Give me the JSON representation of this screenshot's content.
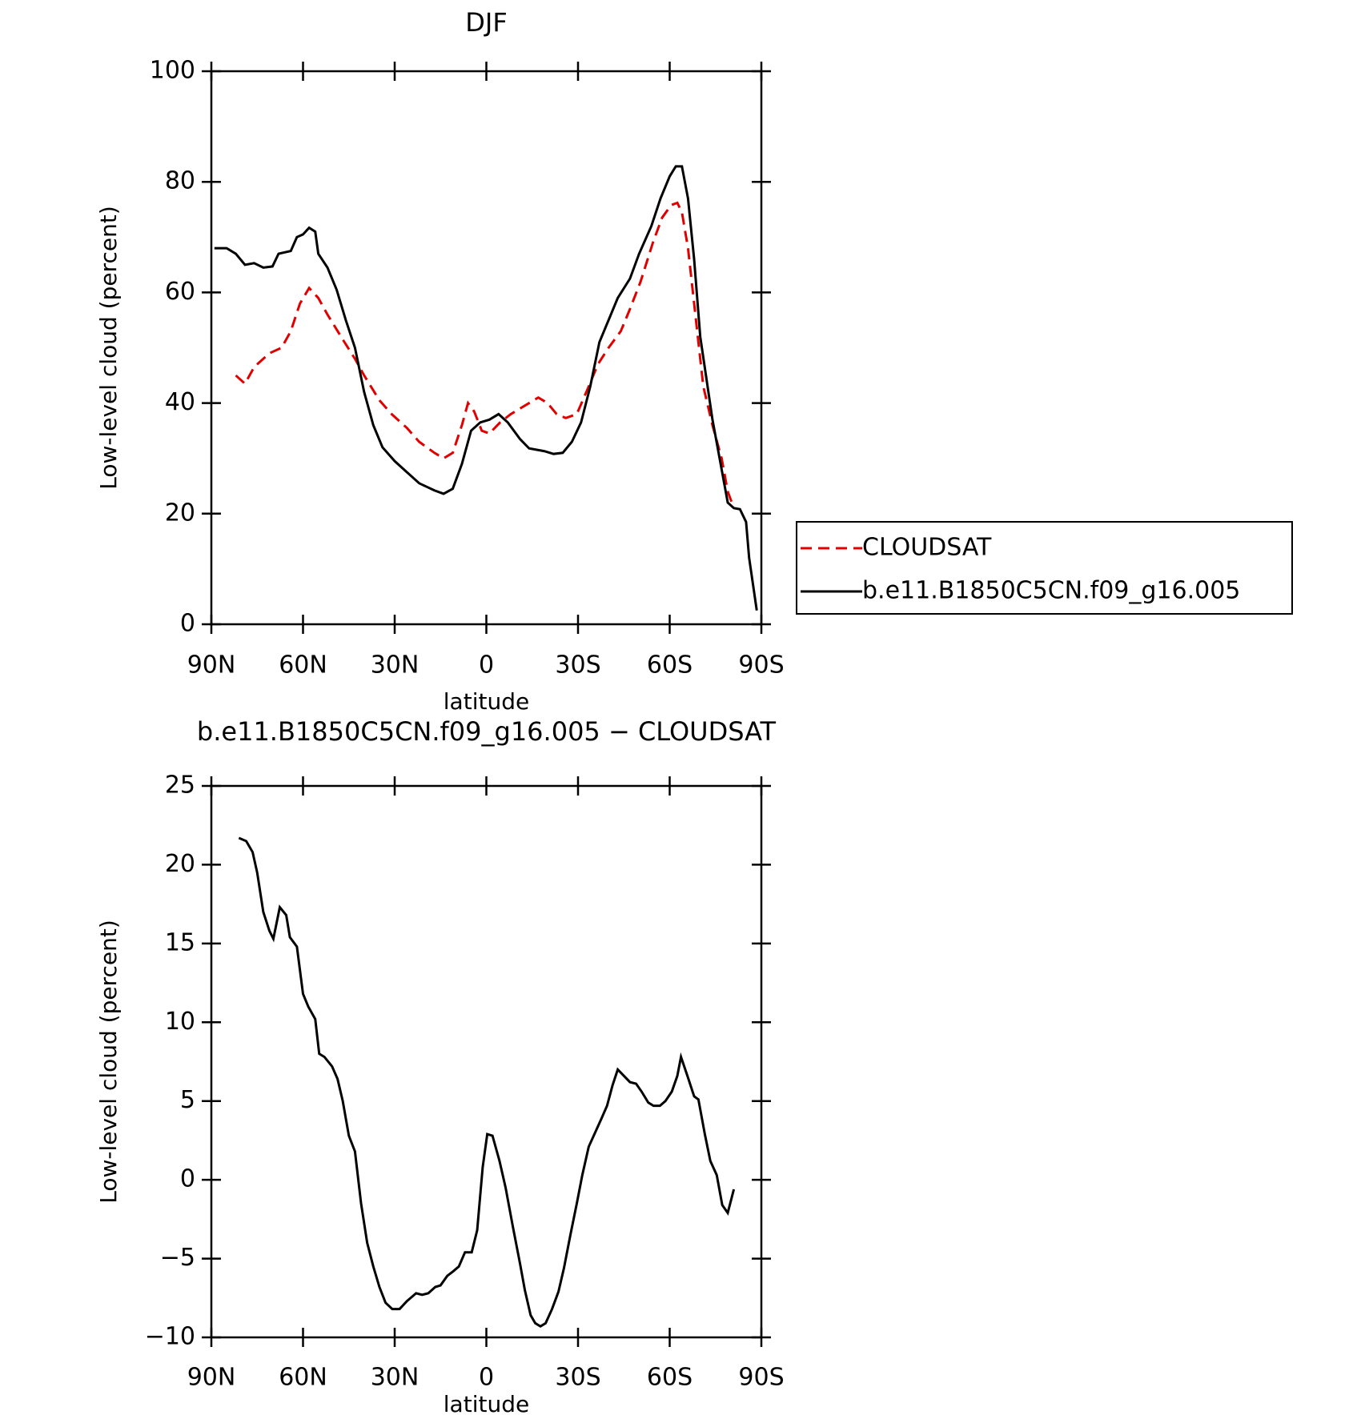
{
  "chart_data": [
    {
      "type": "line",
      "title": "DJF",
      "xlabel": "latitude",
      "ylabel": "Low-level cloud (percent)",
      "xlim": [
        90,
        -90
      ],
      "ylim": [
        0,
        100
      ],
      "xticks": [
        {
          "value": 90,
          "label": "90N"
        },
        {
          "value": 60,
          "label": "60N"
        },
        {
          "value": 30,
          "label": "30N"
        },
        0,
        {
          "value": -30,
          "label": "30S"
        },
        {
          "value": -60,
          "label": "60S"
        },
        {
          "value": -90,
          "label": "90S"
        }
      ],
      "yticks": [
        0,
        20,
        40,
        60,
        80,
        100
      ],
      "legend": "right",
      "series": [
        {
          "name": "CLOUDSAT",
          "color": "#e00000",
          "style": "dashed",
          "x": [
            82,
            79,
            76,
            71,
            67,
            64,
            61,
            58,
            55,
            52,
            47,
            43,
            40,
            35,
            31,
            26,
            22,
            17,
            14,
            11,
            8,
            6,
            4,
            1.5,
            -1,
            -4.5,
            -8,
            -12.5,
            -17,
            -20,
            -23,
            -26,
            -29.6,
            -33.5,
            -36.5,
            -40,
            -44,
            -47,
            -50.5,
            -54.5,
            -57.5,
            -60.5,
            -62.5,
            -64,
            -66,
            -68,
            -71,
            -74,
            -77,
            -79,
            -81
          ],
          "values": [
            45,
            43.5,
            46.5,
            49,
            50,
            53,
            58,
            60.8,
            59,
            56,
            51.5,
            48,
            45,
            40.5,
            38,
            35.5,
            33,
            31,
            30,
            31,
            36,
            40,
            38.5,
            35,
            34.5,
            36.5,
            38,
            39.5,
            41,
            40,
            38,
            37.3,
            38,
            43,
            47,
            50,
            53,
            57,
            62,
            69,
            73.5,
            75.8,
            76.2,
            74.5,
            68,
            58,
            43,
            36,
            30,
            24,
            21
          ]
        },
        {
          "name": "b.e11.B1850C5CN.f09_g16.005",
          "color": "#000000",
          "style": "solid",
          "x": [
            89,
            85,
            82,
            79,
            76,
            73,
            70,
            68,
            64,
            62,
            60,
            58,
            56,
            55,
            52,
            49,
            46,
            43,
            40,
            37,
            34,
            30,
            26,
            22,
            17,
            14,
            11,
            8,
            5,
            2,
            -1,
            -4,
            -7,
            -11,
            -14,
            -19,
            -22,
            -25,
            -28,
            -31,
            -34,
            -37,
            -40,
            -43,
            -47,
            -50,
            -54,
            -57,
            -60,
            -62,
            -64,
            -66,
            -68,
            -70,
            -74,
            -77,
            -79,
            -81,
            -83,
            -85,
            -86,
            -88.5
          ],
          "values": [
            68,
            68,
            67,
            65,
            65.3,
            64.5,
            64.7,
            67,
            67.5,
            70,
            70.5,
            71.7,
            71,
            67,
            64.5,
            60.5,
            55,
            50,
            42,
            36,
            32,
            29.5,
            27.5,
            25.5,
            24.2,
            23.6,
            24.5,
            29,
            35,
            36.5,
            37,
            38,
            36.5,
            33.5,
            31.8,
            31.3,
            30.8,
            31,
            33,
            36.5,
            43,
            51,
            55,
            59,
            62.5,
            67,
            72,
            77,
            81,
            82.8,
            82.8,
            77,
            66,
            52,
            37,
            28,
            22,
            21,
            20.8,
            18.5,
            12,
            2.5
          ]
        }
      ]
    },
    {
      "type": "line",
      "title": "b.e11.B1850C5CN.f09_g16.005 − CLOUDSAT",
      "xlabel": "latitude",
      "ylabel": "Low-level cloud (percent)",
      "xlim": [
        90,
        -90
      ],
      "ylim": [
        -10,
        25
      ],
      "xticks": [
        {
          "value": 90,
          "label": "90N"
        },
        {
          "value": 60,
          "label": "60N"
        },
        {
          "value": 30,
          "label": "30N"
        },
        0,
        {
          "value": -30,
          "label": "30S"
        },
        {
          "value": -60,
          "label": "60S"
        },
        {
          "value": -90,
          "label": "90S"
        }
      ],
      "yticks": [
        {
          "value": -10,
          "label": "−10"
        },
        {
          "value": -5,
          "label": "−5"
        },
        0,
        5,
        10,
        15,
        20,
        25
      ],
      "series": [
        {
          "color": "#000000",
          "style": "solid",
          "x": [
            81,
            78.6,
            76.5,
            75,
            73,
            71,
            69.7,
            67.6,
            65.5,
            64.3,
            62,
            60,
            58.3,
            56,
            54.7,
            53,
            50.5,
            48.7,
            47,
            45,
            43,
            41,
            39,
            37,
            35,
            33,
            30.8,
            28.4,
            26,
            23,
            21,
            19,
            16.7,
            15,
            12.8,
            10.8,
            9,
            7,
            4.8,
            3,
            1.2,
            -0.3,
            -2,
            -4.3,
            -6.3,
            -8.7,
            -11,
            -12.6,
            -14.5,
            -16,
            -17.7,
            -19.4,
            -21.5,
            -23.6,
            -25.4,
            -27.5,
            -29.6,
            -31.4,
            -33.5,
            -35.6,
            -37.7,
            -39.5,
            -41.3,
            -43,
            -45,
            -47,
            -49,
            -50.8,
            -53,
            -54.7,
            -56.8,
            -58.6,
            -60.7,
            -62.5,
            -63.7,
            -65.8,
            -68,
            -69.4,
            -71.5,
            -73.3,
            -75.4,
            -77.2,
            -79,
            -81
          ],
          "values": [
            21.7,
            21.5,
            20.8,
            19.5,
            17,
            15.8,
            15.3,
            17.3,
            16.8,
            15.4,
            14.8,
            11.8,
            11,
            10.2,
            8,
            7.8,
            7.2,
            6.4,
            5,
            2.8,
            1.8,
            -1.5,
            -4,
            -5.5,
            -6.8,
            -7.8,
            -8.2,
            -8.2,
            -7.7,
            -7.2,
            -7.3,
            -7.2,
            -6.8,
            -6.7,
            -6.1,
            -5.8,
            -5.5,
            -4.6,
            -4.6,
            -3.2,
            0.8,
            2.9,
            2.8,
            1.2,
            -0.5,
            -3,
            -5.3,
            -7,
            -8.6,
            -9.1,
            -9.3,
            -9.1,
            -8.2,
            -7.1,
            -5.6,
            -3.5,
            -1.5,
            0.3,
            2.1,
            3,
            3.9,
            4.7,
            6,
            7,
            6.6,
            6.2,
            6.1,
            5.6,
            4.9,
            4.7,
            4.7,
            5,
            5.6,
            6.6,
            7.8,
            6.6,
            5.3,
            5.1,
            2.9,
            1.2,
            0.3,
            -1.6,
            -2.1,
            -0.6
          ]
        }
      ]
    }
  ]
}
